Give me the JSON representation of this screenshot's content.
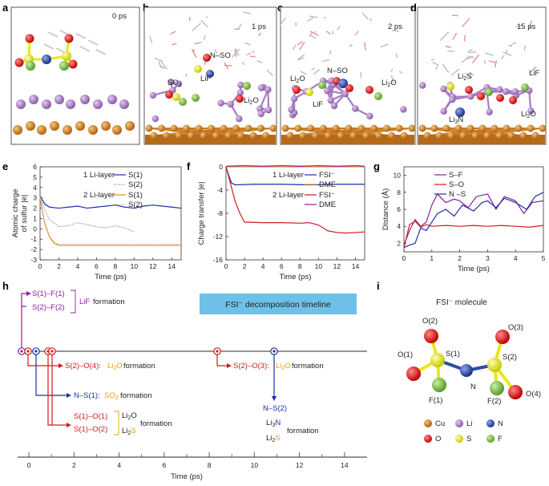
{
  "panels": {
    "a": {
      "letter": "a",
      "time": "0 ps"
    },
    "b": {
      "letter": "b",
      "time": "1 ps",
      "labels": [
        "N–SO",
        "SO2",
        "LiF",
        "Li2O"
      ]
    },
    "c": {
      "letter": "c",
      "time": "2 ps",
      "labels": [
        "Li2O",
        "N–SO",
        "Li2O",
        "LiF"
      ]
    },
    "d": {
      "letter": "d",
      "time": "15 ps",
      "labels": [
        "Li2S",
        "LiF",
        "Li3N",
        "Li2O"
      ]
    }
  },
  "colors": {
    "cu": "#c8781e",
    "li": "#a77cc4",
    "n": "#2a4ea8",
    "o": "#e41a1a",
    "s": "#e8e81a",
    "f": "#7fbf3f",
    "blue_line": "#1f2fa8",
    "orange_line": "#f08c14",
    "red_line": "#d01c1c",
    "purple_line": "#8a1fa0",
    "timeline_box": "#6ec0e6"
  },
  "charts": {
    "e": {
      "letter": "e",
      "type": "line",
      "ylabel_line1": "Atomic charge",
      "ylabel_line2": "of sulfur |e|",
      "xlabel": "Time (ps)",
      "xlim": [
        0,
        15
      ],
      "ylim": [
        -3,
        6
      ],
      "xticks": [
        "0",
        "2",
        "4",
        "6",
        "8",
        "10",
        "12",
        "14"
      ],
      "yticks": [
        "6",
        "5",
        "4",
        "3",
        "2",
        "1",
        "0",
        "-1",
        "-2",
        "-3"
      ],
      "legend": {
        "group1": "1 Li-layer",
        "group2": "2 Li-layer",
        "s1": "S(1)",
        "s2": "S(2)"
      },
      "series": [
        {
          "name": "S(1)",
          "group": "1 Li-layer",
          "x": [
            0,
            0.5,
            1,
            2,
            3,
            4,
            5,
            6,
            7,
            8,
            9,
            10,
            11,
            12,
            13,
            14,
            15
          ],
          "values": [
            3.2,
            2.4,
            2.1,
            2.0,
            2.1,
            2.2,
            2.0,
            2.1,
            2.2,
            2.3,
            2.1,
            2.0,
            2.2,
            2.3,
            2.2,
            2.1,
            2.0
          ]
        },
        {
          "name": "S(2)",
          "group": "1 Li-layer",
          "x": [
            0,
            0.5,
            1,
            2,
            3,
            4,
            5,
            6,
            7,
            8,
            9,
            10
          ],
          "values": [
            3.2,
            1.8,
            0.9,
            0.2,
            0.3,
            0.6,
            0.4,
            0.2,
            0.1,
            0.3,
            0.1,
            -0.3
          ]
        },
        {
          "name": "S(1)",
          "group": "2 Li-layer",
          "x": [
            0,
            0.5,
            1,
            1.5,
            2,
            4,
            6,
            8,
            10,
            12,
            14,
            15
          ],
          "values": [
            3.0,
            0.5,
            -0.8,
            -1.4,
            -1.6,
            -1.6,
            -1.6,
            -1.6,
            -1.6,
            -1.6,
            -1.6,
            -1.6
          ]
        },
        {
          "name": "S(2)",
          "group": "2 Li-layer",
          "x": [
            0,
            0.5,
            1,
            1.5,
            2,
            4,
            6,
            8,
            10,
            12,
            14,
            15
          ],
          "values": [
            3.1,
            0.6,
            -0.7,
            -1.3,
            -1.5,
            -1.5,
            -1.5,
            -1.5,
            -1.5,
            -1.5,
            -1.5,
            -1.5
          ]
        }
      ]
    },
    "f": {
      "letter": "f",
      "type": "line",
      "ylabel": "Charge transfer |e|",
      "xlabel": "Time (ps)",
      "xlim": [
        0,
        15
      ],
      "ylim": [
        -16,
        0
      ],
      "xticks": [
        "0",
        "2",
        "4",
        "6",
        "8",
        "10",
        "12",
        "14"
      ],
      "yticks": [
        "0",
        "-4",
        "-8",
        "-12",
        "-16"
      ],
      "legend": {
        "group1": "1 Li-layer",
        "group2": "2 Li-layer",
        "fsi": "FSI⁻",
        "dme": "DME"
      },
      "series": [
        {
          "name": "FSI⁻",
          "group": "1 Li-layer",
          "x": [
            0,
            0.3,
            0.6,
            1,
            3,
            6,
            9,
            12,
            15
          ],
          "values": [
            0,
            -1.5,
            -2.8,
            -3.1,
            -3.0,
            -3.0,
            -3.1,
            -3.0,
            -3.0
          ]
        },
        {
          "name": "DME",
          "group": "1 Li-layer",
          "x": [
            0,
            15
          ],
          "values": [
            0,
            0
          ]
        },
        {
          "name": "FSI⁻",
          "group": "2 Li-layer",
          "x": [
            0,
            0.5,
            1,
            1.5,
            2,
            4,
            6,
            8,
            9,
            10,
            11,
            12,
            13,
            14,
            15
          ],
          "values": [
            0,
            -3,
            -6,
            -8,
            -9.5,
            -9.6,
            -9.6,
            -9.7,
            -9.6,
            -10.0,
            -11.0,
            -11.3,
            -11.4,
            -11.3,
            -11.2
          ]
        },
        {
          "name": "DME",
          "group": "2 Li-layer",
          "x": [
            0,
            2,
            4,
            6,
            8,
            10,
            12,
            14,
            15
          ],
          "values": [
            0.1,
            0.2,
            0.1,
            0.2,
            0.1,
            0.2,
            0.1,
            0.2,
            0.1
          ]
        }
      ]
    },
    "g": {
      "letter": "g",
      "type": "line",
      "ylabel": "Distance (Å)",
      "xlabel": "Time (ps)",
      "xlim": [
        0,
        5
      ],
      "ylim": [
        1,
        11
      ],
      "xticks": [
        "0",
        "1",
        "2",
        "3",
        "4",
        "5"
      ],
      "yticks": [
        "10",
        "8",
        "6",
        "4",
        "2"
      ],
      "legend": {
        "sf": "S–F",
        "so": "S–O",
        "ns": "N –S"
      },
      "series": [
        {
          "name": "S–F",
          "x": [
            0,
            0.2,
            0.4,
            0.6,
            0.8,
            1.0,
            1.2,
            1.5,
            1.8,
            2.0,
            2.3,
            2.6,
            3.0,
            3.3,
            3.6,
            4.0,
            4.3,
            4.6,
            5.0
          ],
          "values": [
            1.8,
            3.5,
            4.8,
            4.0,
            4.5,
            6.5,
            7.8,
            6.8,
            7.2,
            7.0,
            6.2,
            7.5,
            7.8,
            6.0,
            7.5,
            7.0,
            5.5,
            6.8,
            7.0
          ]
        },
        {
          "name": "S–O",
          "x": [
            0,
            0.2,
            0.4,
            0.6,
            0.8,
            1.0,
            1.5,
            2.0,
            2.5,
            3.0,
            3.5,
            4.0,
            4.5,
            5.0
          ],
          "values": [
            1.5,
            4.2,
            4.6,
            3.9,
            4.2,
            4.0,
            4.1,
            4.0,
            4.1,
            4.0,
            4.1,
            4.0,
            3.9,
            4.1
          ]
        },
        {
          "name": "N –S",
          "x": [
            0,
            0.2,
            0.4,
            0.6,
            0.8,
            1.0,
            1.2,
            1.5,
            1.8,
            2.1,
            2.5,
            2.8,
            3.0,
            3.3,
            3.6,
            4.0,
            4.4,
            4.7,
            5.0
          ],
          "values": [
            1.5,
            1.8,
            2.0,
            3.8,
            3.5,
            4.5,
            5.5,
            6.0,
            5.2,
            6.5,
            5.8,
            6.8,
            7.0,
            6.2,
            7.3,
            6.8,
            6.0,
            7.5,
            8.0
          ]
        }
      ]
    }
  },
  "timeline": {
    "letter": "h",
    "box_title": "FSI⁻ decomposition timeline",
    "events": {
      "lif": {
        "bonds": [
          "S(1)–F(1)",
          "S(2)–F(2)"
        ],
        "product": "LiF",
        "word": "formation"
      },
      "s2o4": {
        "bond": "S(2)–O(4):",
        "product": "Li2O",
        "word": "formation"
      },
      "ns1": {
        "bond": "N–S(1):",
        "product": "SO2",
        "word": "formation"
      },
      "s1o": {
        "bonds": [
          "S(1)–O(1)",
          "S(1)–O(2)"
        ],
        "products": [
          "Li2O",
          "Li2S"
        ],
        "word": "formation"
      },
      "s2o3": {
        "bond": "S(2)–O(3):",
        "product": "Li2O",
        "word": "formation"
      },
      "ns2": {
        "bond": "N–S(2)",
        "products": [
          "Li3N",
          "Li2S"
        ],
        "word": "formation"
      }
    },
    "xlabel": "Time (ps)",
    "xticks": [
      "0",
      "2",
      "4",
      "6",
      "8",
      "10",
      "12",
      "14"
    ],
    "xlim": [
      -0.5,
      15
    ]
  },
  "molecule": {
    "letter": "i",
    "title": "FSI⁻ molecule",
    "atoms": [
      "O(2)",
      "O(3)",
      "O(1)",
      "S(1)",
      "S(2)",
      "N",
      "F(1)",
      "F(2)",
      "O(4)"
    ]
  },
  "legend_i": [
    "Cu",
    "Li",
    "N",
    "O",
    "S",
    "F"
  ]
}
